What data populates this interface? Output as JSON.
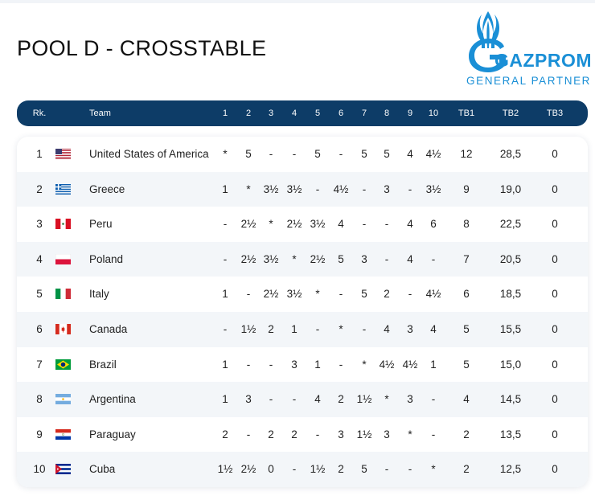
{
  "page": {
    "title": "POOL D - CROSSTABLE"
  },
  "logo": {
    "word": "GAZPROM",
    "partner": "GENERAL PARTNER",
    "color": "#1a8fd6"
  },
  "table": {
    "headers": {
      "rank": "Rk.",
      "team": "Team",
      "rounds": [
        "1",
        "2",
        "3",
        "4",
        "5",
        "6",
        "7",
        "8",
        "9",
        "10"
      ],
      "tb1": "TB1",
      "tb2": "TB2",
      "tb3": "TB3"
    },
    "rows": [
      {
        "rank": "1",
        "flag": "usa-flag-icon",
        "team": "United States of America",
        "scores": [
          "*",
          "5",
          "-",
          "-",
          "5",
          "-",
          "5",
          "5",
          "4",
          "4½"
        ],
        "tb1": "12",
        "tb2": "28,5",
        "tb3": "0"
      },
      {
        "rank": "2",
        "flag": "greece-flag-icon",
        "team": "Greece",
        "scores": [
          "1",
          "*",
          "3½",
          "3½",
          "-",
          "4½",
          "-",
          "3",
          "-",
          "3½"
        ],
        "tb1": "9",
        "tb2": "19,0",
        "tb3": "0"
      },
      {
        "rank": "3",
        "flag": "peru-flag-icon",
        "team": "Peru",
        "scores": [
          "-",
          "2½",
          "*",
          "2½",
          "3½",
          "4",
          "-",
          "-",
          "4",
          "6"
        ],
        "tb1": "8",
        "tb2": "22,5",
        "tb3": "0"
      },
      {
        "rank": "4",
        "flag": "poland-flag-icon",
        "team": "Poland",
        "scores": [
          "-",
          "2½",
          "3½",
          "*",
          "2½",
          "5",
          "3",
          "-",
          "4",
          "-"
        ],
        "tb1": "7",
        "tb2": "20,5",
        "tb3": "0"
      },
      {
        "rank": "5",
        "flag": "italy-flag-icon",
        "team": "Italy",
        "scores": [
          "1",
          "-",
          "2½",
          "3½",
          "*",
          "-",
          "5",
          "2",
          "-",
          "4½"
        ],
        "tb1": "6",
        "tb2": "18,5",
        "tb3": "0"
      },
      {
        "rank": "6",
        "flag": "canada-flag-icon",
        "team": "Canada",
        "scores": [
          "-",
          "1½",
          "2",
          "1",
          "-",
          "*",
          "-",
          "4",
          "3",
          "4"
        ],
        "tb1": "5",
        "tb2": "15,5",
        "tb3": "0"
      },
      {
        "rank": "7",
        "flag": "brazil-flag-icon",
        "team": "Brazil",
        "scores": [
          "1",
          "-",
          "-",
          "3",
          "1",
          "-",
          "*",
          "4½",
          "4½",
          "1"
        ],
        "tb1": "5",
        "tb2": "15,0",
        "tb3": "0"
      },
      {
        "rank": "8",
        "flag": "argentina-flag-icon",
        "team": "Argentina",
        "scores": [
          "1",
          "3",
          "-",
          "-",
          "4",
          "2",
          "1½",
          "*",
          "3",
          "-"
        ],
        "tb1": "4",
        "tb2": "14,5",
        "tb3": "0"
      },
      {
        "rank": "9",
        "flag": "paraguay-flag-icon",
        "team": "Paraguay",
        "scores": [
          "2",
          "-",
          "2",
          "2",
          "-",
          "3",
          "1½",
          "3",
          "*",
          "-"
        ],
        "tb1": "2",
        "tb2": "13,5",
        "tb3": "0"
      },
      {
        "rank": "10",
        "flag": "cuba-flag-icon",
        "team": "Cuba",
        "scores": [
          "1½",
          "2½",
          "0",
          "-",
          "1½",
          "2",
          "5",
          "-",
          "-",
          "*"
        ],
        "tb1": "2",
        "tb2": "12,5",
        "tb3": "0"
      }
    ]
  },
  "colors": {
    "header_bg": "#0d3c67",
    "row_alt_bg": "#f3f6f9",
    "logo_blue": "#1a8fd6"
  }
}
